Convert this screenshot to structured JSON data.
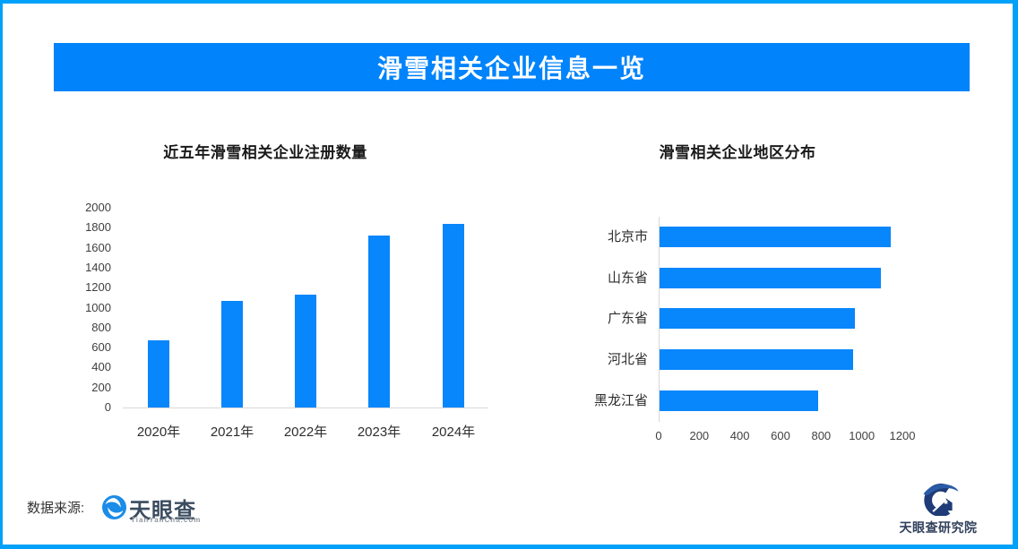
{
  "page": {
    "title": "滑雪相关企业信息一览"
  },
  "colors": {
    "border": "#00A1F9",
    "banner": "#0083FB",
    "bar": "#0886FC",
    "axis_line": "#D8D8D8",
    "tick_text": "#3F3F3F",
    "label_text": "#2E2E2E"
  },
  "chart_data": [
    {
      "type": "bar",
      "orientation": "vertical",
      "title": "近五年滑雪相关企业注册数量",
      "categories": [
        "2020年",
        "2021年",
        "2022年",
        "2023年",
        "2024年"
      ],
      "values": [
        670,
        1065,
        1130,
        1725,
        1835
      ],
      "xlabel": "",
      "ylabel": "",
      "ylim": [
        0,
        2000
      ],
      "ytick_step": 200,
      "grid": false,
      "legend": false
    },
    {
      "type": "bar",
      "orientation": "horizontal",
      "title": "滑雪相关企业地区分布",
      "categories": [
        "北京市",
        "山东省",
        "广东省",
        "河北省",
        "黑龙江省"
      ],
      "values": [
        1140,
        1090,
        960,
        955,
        780
      ],
      "xlabel": "",
      "ylabel": "",
      "xlim": [
        0,
        1200
      ],
      "xtick_step": 200,
      "grid": false,
      "legend": false
    }
  ],
  "footer": {
    "source_label": "数据来源:",
    "tianyancha_name": "天眼查",
    "tianyancha_domain": "TianYanCha.com",
    "institute_name": "天眼查研究院"
  }
}
